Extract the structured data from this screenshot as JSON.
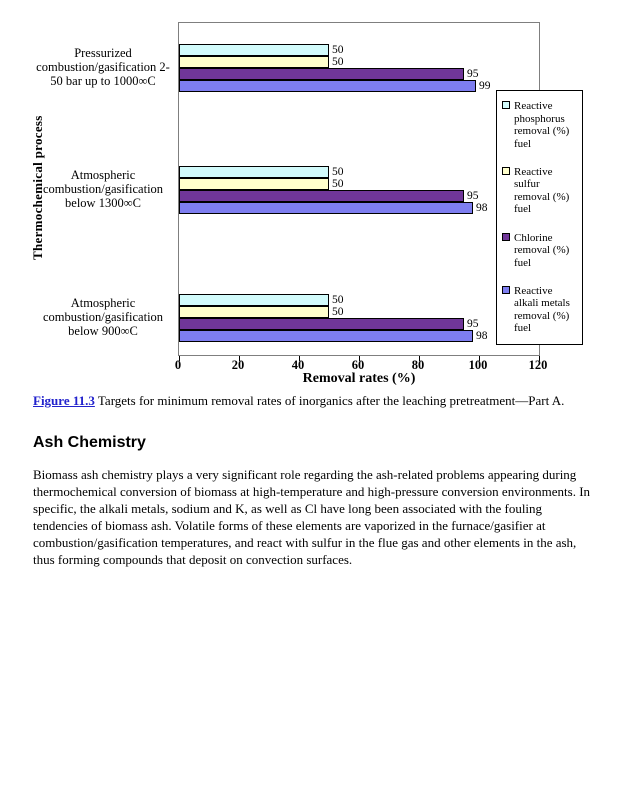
{
  "figure": {
    "caption_label": "Figure 11.3",
    "caption_text": " Targets for minimum removal rates of inorganics after the leaching pretreatment—Part A."
  },
  "section": {
    "heading": "Ash Chemistry",
    "body": "Biomass ash chemistry plays a very significant role regarding the ash-related problems appearing during thermochemical conversion of biomass at high-temperature and high-pressure conversion environments. In specific, the alkali metals, sodium and K, as well as Cl have long been associated with the fouling tendencies of biomass ash. Volatile forms of these elements are vaporized in the furnace/gasifier at combustion/gasification temperatures, and react with sulfur in the flue gas and other elements in the ash, thus forming compounds that deposit on convection surfaces.",
    "body_paragraph_count": "1"
  },
  "chart_data": {
    "type": "bar",
    "orientation": "horizontal",
    "title": "",
    "xlabel": "Removal rates (%)",
    "ylabel": "Thermochemical process",
    "xlim": [
      0,
      120
    ],
    "xticks": [
      0,
      20,
      40,
      60,
      80,
      100,
      120
    ],
    "grid": false,
    "legend_position": "right",
    "categories": [
      "Pressurized combustion/gasification 2-50 bar up to 1000∞C",
      "Atmospheric combustion/gasification below 1300∞C",
      "Atmospheric combustion/gasification below 900∞C"
    ],
    "category_lines": [
      [
        "Pressurized",
        "combustion/gasification 2-",
        "50 bar up to 1000∞C"
      ],
      [
        "Atmospheric",
        "combustion/gasification",
        "below 1300∞C"
      ],
      [
        "Atmospheric",
        "combustion/gasification",
        "below 900∞C"
      ]
    ],
    "series": [
      {
        "name": "Reactive phosphorus removal (%) fuel",
        "color": "#d2fbfb",
        "values": [
          50,
          50,
          50
        ]
      },
      {
        "name": "Reactive sulfur removal (%) fuel",
        "color": "#ffffcc",
        "values": [
          50,
          50,
          50
        ]
      },
      {
        "name": "Chlorine removal (%) fuel",
        "color": "#703699",
        "values": [
          95,
          95,
          95
        ]
      },
      {
        "name": "Reactive alkali metals removal (%) fuel",
        "color": "#7e7ef0",
        "values": [
          99,
          98,
          98
        ]
      }
    ]
  }
}
